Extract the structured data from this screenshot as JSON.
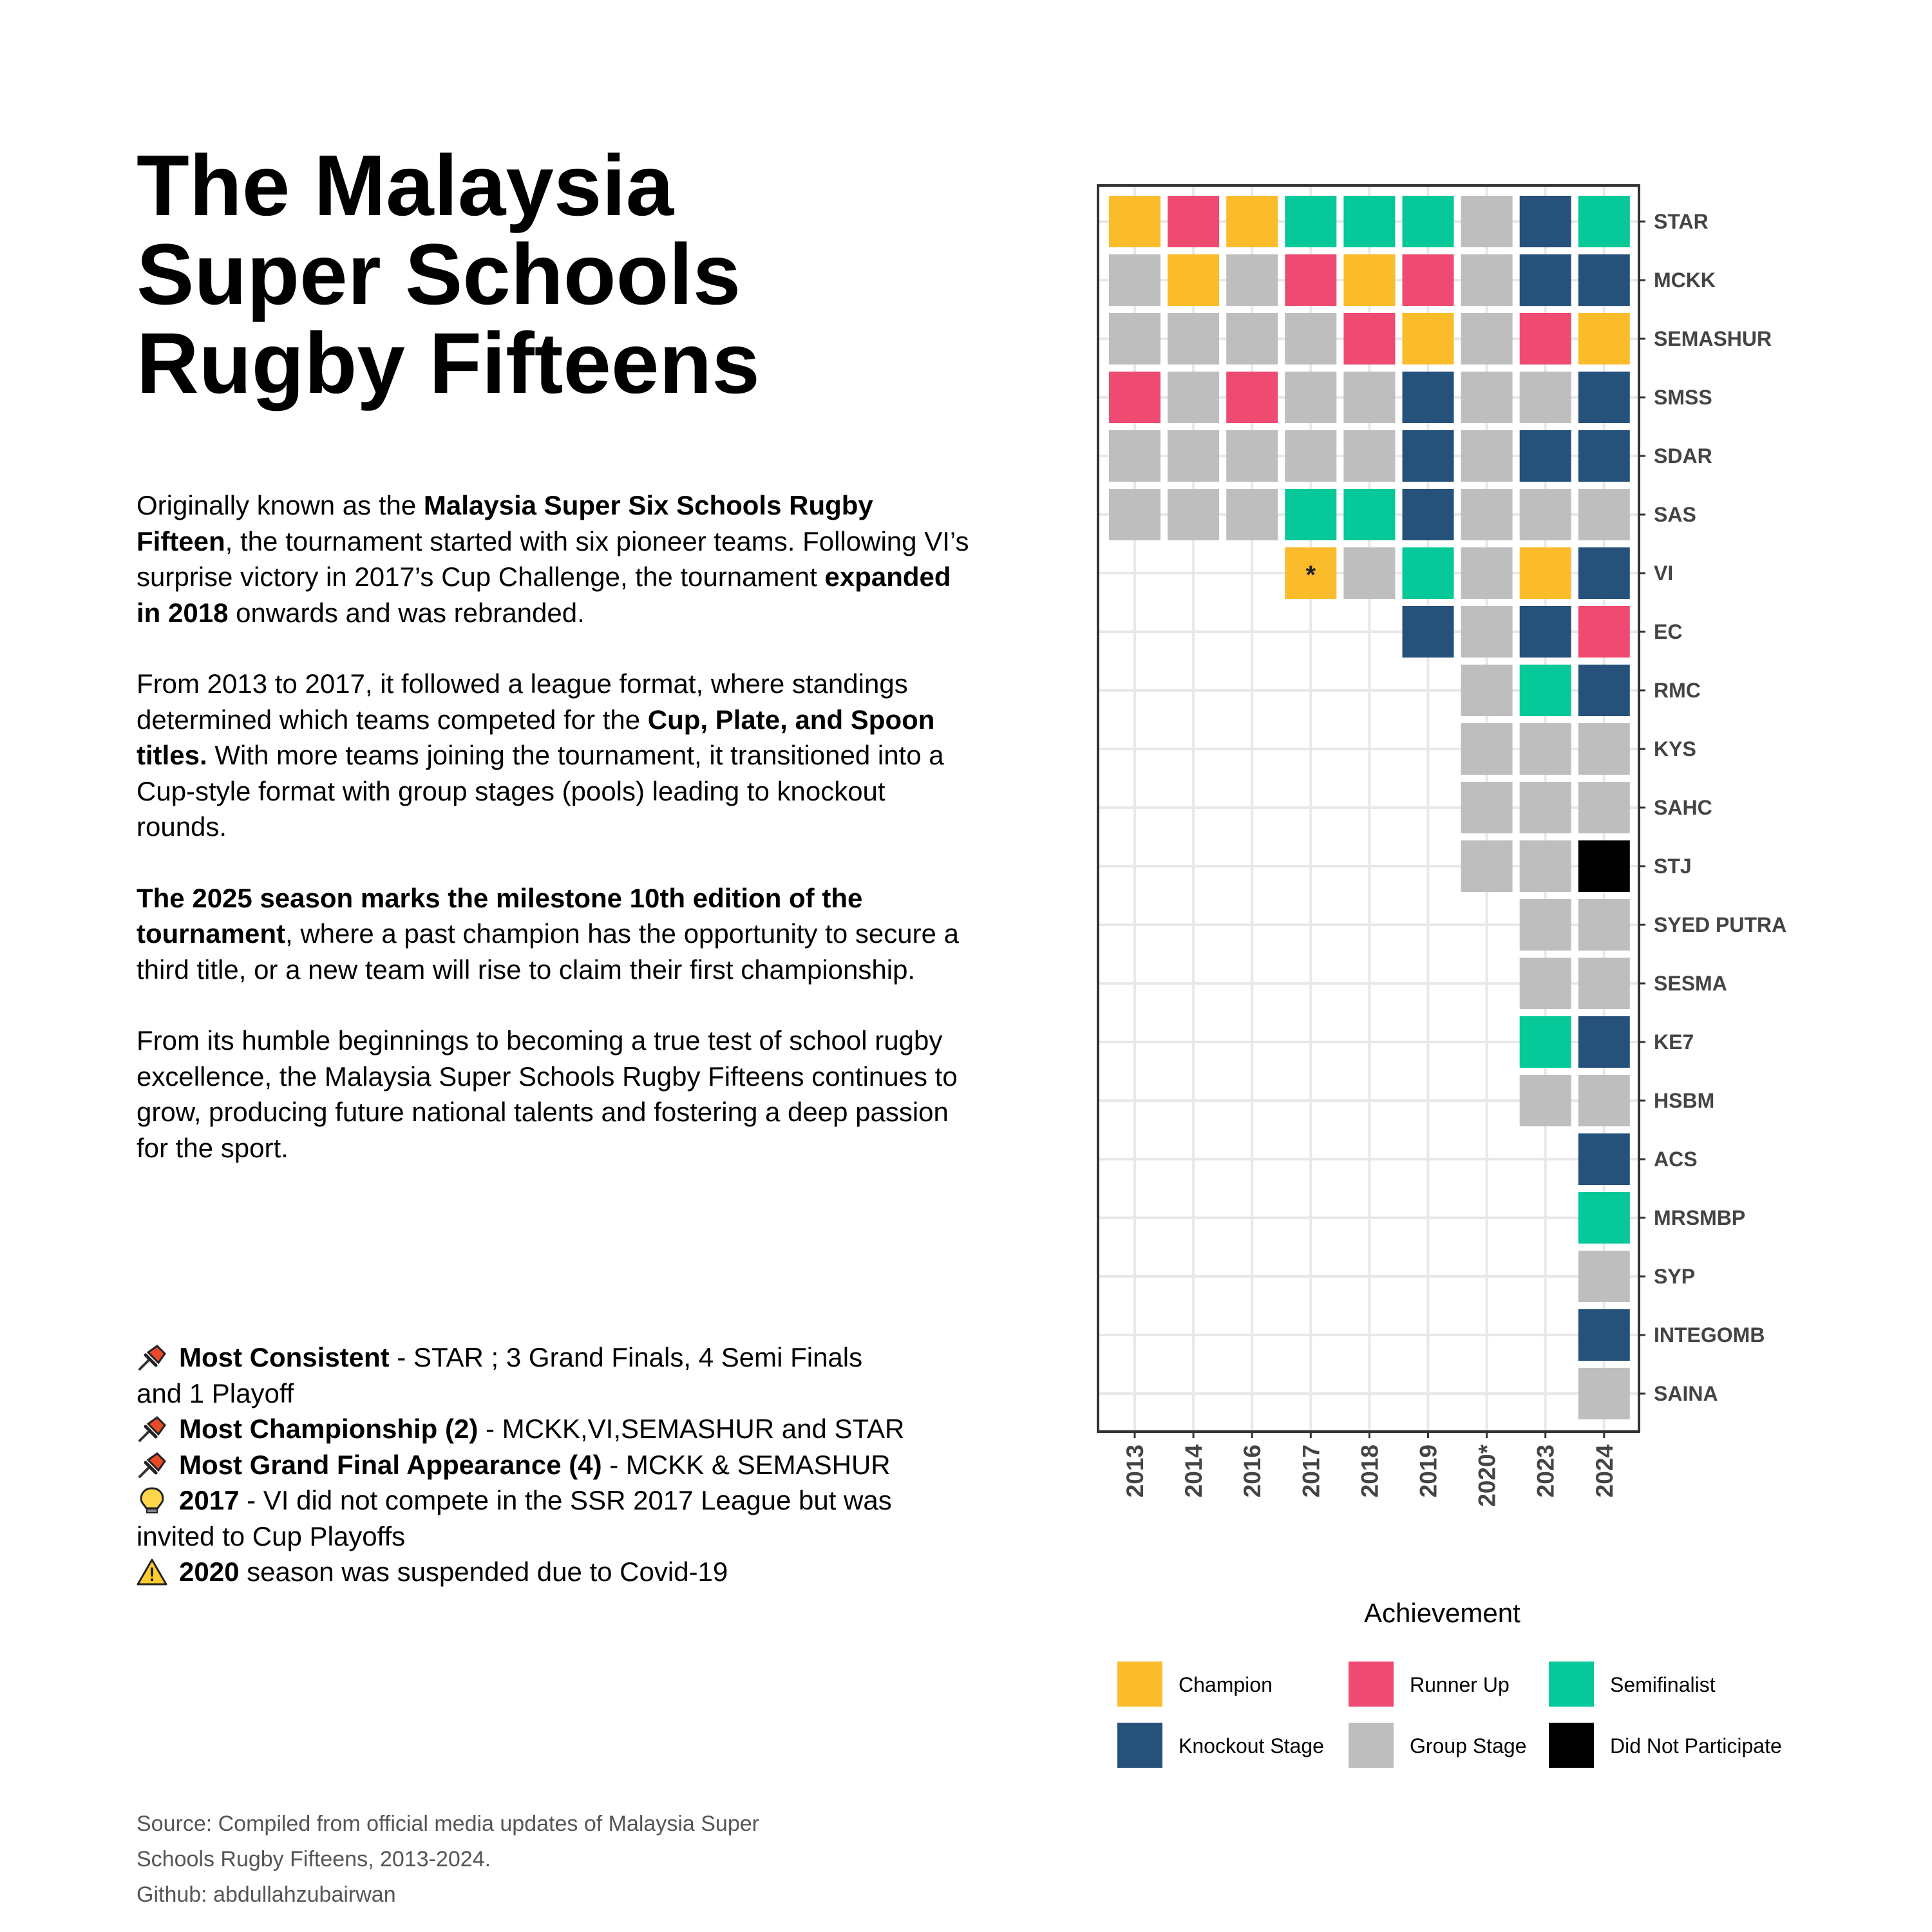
{
  "title_lines": [
    "The Malaysia",
    "Super Schools",
    "Rugby Fifteens"
  ],
  "paragraphs": {
    "p1": {
      "a": "Originally known as the ",
      "b": "Malaysia Super Six Schools Rugby Fifteen",
      "c": ", the tournament started with six pioneer teams. Following VI’s surprise victory in 2017’s Cup Challenge, the tournament ",
      "d": "expanded in 2018",
      "e": " onwards and was rebranded."
    },
    "p2": {
      "a": "From 2013 to 2017, it followed a league format, where standings determined which teams competed for the ",
      "b": "Cup, Plate, and Spoon titles.",
      "c": " With more teams joining the tournament, it transitioned into a Cup-style format with group stages (pools) leading to knockout rounds."
    },
    "p3": {
      "a": "The 2025 season marks the milestone 10th edition of the tournament",
      "b": ", where a past champion has the opportunity to secure a third title, or a new team will rise to claim their first championship."
    },
    "p4": "From its humble beginnings to becoming a true test of school rugby excellence, the Malaysia Super Schools Rugby Fifteens continues to grow, producing future national talents and fostering a deep passion for the sport."
  },
  "notes": [
    {
      "icon": "pushpin-icon",
      "bold": "Most Consistent",
      "text": " - STAR ; 3 Grand Finals, 4 Semi Finals and 1 Playoff"
    },
    {
      "icon": "pushpin-icon",
      "bold": "Most Championship (2)",
      "text": " - MCKK,VI,SEMASHUR and STAR"
    },
    {
      "icon": "pushpin-icon",
      "bold": "Most Grand Final Appearance (4)",
      "text": " - MCKK & SEMASHUR"
    },
    {
      "icon": "lightbulb-icon",
      "bold": "2017",
      "text": " - VI did not compete in the SSR 2017 League but was invited to Cup Playoffs"
    },
    {
      "icon": "warning-icon",
      "bold": "2020",
      "text": " season was suspended due to Covid-19"
    }
  ],
  "source": {
    "line1": "Source: Compiled from official media updates of Malaysia Super",
    "line2": "Schools Rugby Fifteens, 2013-2024.",
    "line3": "Github: abdullahzubairwan"
  },
  "chart_data": {
    "type": "heatmap",
    "years": [
      "2013",
      "2014",
      "2016",
      "2017",
      "2018",
      "2019",
      "2020*",
      "2023",
      "2024"
    ],
    "teams": [
      "STAR",
      "MCKK",
      "SEMASHUR",
      "SMSS",
      "SDAR",
      "SAS",
      "VI",
      "EC",
      "RMC",
      "KYS",
      "SAHC",
      "STJ",
      "SYED PUTRA",
      "SESMA",
      "KE7",
      "HSBM",
      "ACS",
      "MRSMBP",
      "SYP",
      "INTEGOMB",
      "SAINA"
    ],
    "values": [
      [
        "C",
        "R",
        "C",
        "S",
        "S",
        "S",
        "G",
        "K",
        "S"
      ],
      [
        "G",
        "C",
        "G",
        "R",
        "C",
        "R",
        "G",
        "K",
        "K"
      ],
      [
        "G",
        "G",
        "G",
        "G",
        "R",
        "C",
        "G",
        "R",
        "C"
      ],
      [
        "R",
        "G",
        "R",
        "G",
        "G",
        "K",
        "G",
        "G",
        "K"
      ],
      [
        "G",
        "G",
        "G",
        "G",
        "G",
        "K",
        "G",
        "K",
        "K"
      ],
      [
        "G",
        "G",
        "G",
        "S",
        "S",
        "K",
        "G",
        "G",
        "G"
      ],
      [
        null,
        null,
        null,
        "C",
        "G",
        "S",
        "G",
        "C",
        "K"
      ],
      [
        null,
        null,
        null,
        null,
        null,
        "K",
        "G",
        "K",
        "R"
      ],
      [
        null,
        null,
        null,
        null,
        null,
        null,
        "G",
        "S",
        "K"
      ],
      [
        null,
        null,
        null,
        null,
        null,
        null,
        "G",
        "G",
        "G"
      ],
      [
        null,
        null,
        null,
        null,
        null,
        null,
        "G",
        "G",
        "G"
      ],
      [
        null,
        null,
        null,
        null,
        null,
        null,
        "G",
        "G",
        "D"
      ],
      [
        null,
        null,
        null,
        null,
        null,
        null,
        null,
        "G",
        "G"
      ],
      [
        null,
        null,
        null,
        null,
        null,
        null,
        null,
        "G",
        "G"
      ],
      [
        null,
        null,
        null,
        null,
        null,
        null,
        null,
        "S",
        "K"
      ],
      [
        null,
        null,
        null,
        null,
        null,
        null,
        null,
        "G",
        "G"
      ],
      [
        null,
        null,
        null,
        null,
        null,
        null,
        null,
        null,
        "K"
      ],
      [
        null,
        null,
        null,
        null,
        null,
        null,
        null,
        null,
        "S"
      ],
      [
        null,
        null,
        null,
        null,
        null,
        null,
        null,
        null,
        "G"
      ],
      [
        null,
        null,
        null,
        null,
        null,
        null,
        null,
        null,
        "K"
      ],
      [
        null,
        null,
        null,
        null,
        null,
        null,
        null,
        null,
        "G"
      ]
    ],
    "annotations": [
      {
        "team": "VI",
        "year": "2017",
        "text": "*"
      }
    ],
    "legend": {
      "title": "Achievement",
      "placement": "bottom",
      "items": [
        {
          "code": "C",
          "label": "Champion",
          "color": "#FBBC2B"
        },
        {
          "code": "R",
          "label": "Runner Up",
          "color": "#EF4A72"
        },
        {
          "code": "S",
          "label": "Semifinalist",
          "color": "#06C898"
        },
        {
          "code": "K",
          "label": "Knockout Stage",
          "color": "#26517A"
        },
        {
          "code": "G",
          "label": "Group Stage",
          "color": "#BEBEBE"
        },
        {
          "code": "D",
          "label": "Did Not Participate",
          "color": "#000000"
        }
      ]
    },
    "grid": true,
    "grid_color": "#E8E8E8",
    "panel_border_color": "#333333"
  }
}
